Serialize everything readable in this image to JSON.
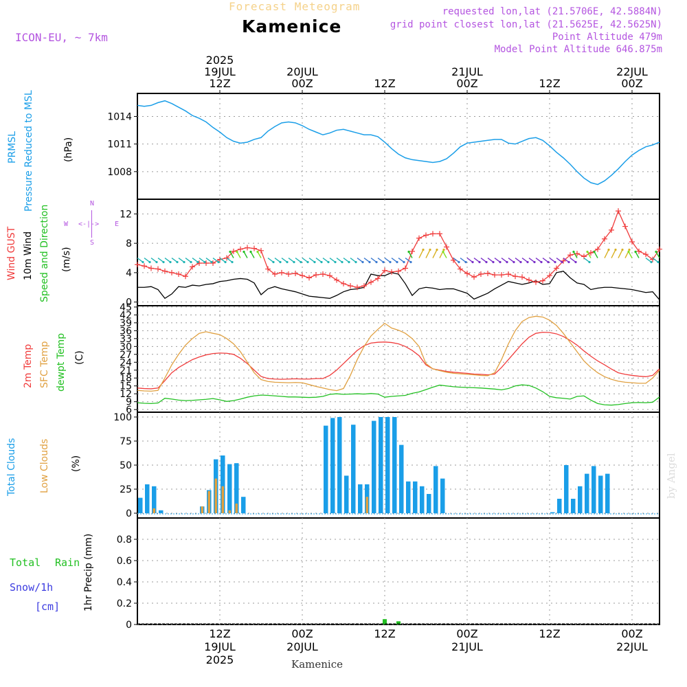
{
  "header": {
    "chart_title": "Forecast Meteogram",
    "location": "Kamenice",
    "model": "ICON-EU, ~ 7km",
    "requested": "requested lon,lat (21.5706E, 42.5884N)",
    "gridpoint": "grid point closest lon,lat (21.5625E, 42.5625N)",
    "point_alt": "Point Altitude 479m",
    "model_alt": "Model Point Altitude 646.875m",
    "bottom_location": "Kamenice",
    "watermark": "by Angel"
  },
  "colors": {
    "pressure": "#1a9ee8",
    "gust": "#f03c3c",
    "wind": "#000000",
    "wind_dir": "#22c022",
    "temp": "#f03c3c",
    "sfc_temp": "#e0a040",
    "dewpt": "#22c022",
    "total_clouds": "#1a9ee8",
    "low_clouds": "#e0a040",
    "rain": "#22c022",
    "snow": "#3c3ce0",
    "compass": "#b455e0"
  },
  "panel_labels": {
    "pressure": {
      "l1": "PRMSL",
      "l2": "Pressure Reduced to MSL",
      "unit": "(hPa)"
    },
    "wind": {
      "l1": "Wind GUST",
      "l2": "10m Wind",
      "l3": "Speed and Direction",
      "unit": "(m/s)"
    },
    "temp": {
      "l1": "2m Temp",
      "l2": "SFC Temp",
      "l3": "dewpt Temp",
      "unit": "(C)"
    },
    "clouds": {
      "l1": "Total Clouds",
      "l2": "Low Clouds",
      "unit": "(%)"
    },
    "precip": {
      "l1": "Total",
      "l1b": "Rain",
      "l2": "Snow/1h",
      "l3": "[cm]",
      "unit": "1hr Precip (mm)"
    }
  },
  "compass": {
    "n": "N",
    "s": "S",
    "w": "W",
    "e": "E",
    "arrow": "<-|->"
  },
  "time_axis": {
    "top": [
      {
        "hour": 12,
        "lines": [
          "2025",
          "19JUL",
          "12Z"
        ]
      },
      {
        "hour": 24,
        "lines": [
          "20JUL",
          "00Z"
        ]
      },
      {
        "hour": 36,
        "lines": [
          "12Z"
        ]
      },
      {
        "hour": 48,
        "lines": [
          "21JUL",
          "00Z"
        ]
      },
      {
        "hour": 60,
        "lines": [
          "12Z"
        ]
      },
      {
        "hour": 72,
        "lines": [
          "22JUL",
          "00Z"
        ]
      }
    ],
    "bottom": [
      {
        "hour": 12,
        "lines": [
          "12Z",
          "19JUL",
          "2025"
        ]
      },
      {
        "hour": 24,
        "lines": [
          "00Z",
          "20JUL"
        ]
      },
      {
        "hour": 36,
        "lines": [
          "12Z"
        ]
      },
      {
        "hour": 48,
        "lines": [
          "00Z",
          "21JUL"
        ]
      },
      {
        "hour": 60,
        "lines": [
          "12Z"
        ]
      },
      {
        "hour": 72,
        "lines": [
          "00Z",
          "22JUL"
        ]
      }
    ]
  },
  "chart_data": [
    {
      "type": "line",
      "title": "PRMSL Pressure Reduced to MSL",
      "ylabel": "(hPa)",
      "ylim": [
        1005,
        1016.5
      ],
      "yticks": [
        1008,
        1011,
        1014
      ],
      "grid": true,
      "x_hours": [
        0,
        1,
        2,
        3,
        4,
        5,
        6,
        7,
        8,
        9,
        10,
        11,
        12,
        13,
        14,
        15,
        16,
        17,
        18,
        19,
        20,
        21,
        22,
        23,
        24,
        25,
        26,
        27,
        28,
        29,
        30,
        31,
        32,
        33,
        34,
        35,
        36,
        37,
        38,
        39,
        40,
        41,
        42,
        43,
        44,
        45,
        46,
        47,
        48,
        49,
        50,
        51,
        52,
        53,
        54,
        55,
        56,
        57,
        58,
        59,
        60,
        61,
        62,
        63,
        64,
        65,
        66,
        67,
        68,
        69,
        70,
        71,
        72,
        73,
        74,
        75,
        76
      ],
      "series": [
        {
          "name": "PRMSL",
          "values": [
            1015.2,
            1015.1,
            1015.2,
            1015.5,
            1015.7,
            1015.4,
            1015.0,
            1014.6,
            1014.1,
            1013.8,
            1013.4,
            1012.8,
            1012.3,
            1011.7,
            1011.3,
            1011.1,
            1011.2,
            1011.5,
            1011.7,
            1012.4,
            1012.9,
            1013.3,
            1013.4,
            1013.3,
            1013.0,
            1012.6,
            1012.3,
            1012.0,
            1012.2,
            1012.5,
            1012.6,
            1012.4,
            1012.2,
            1012.0,
            1012.0,
            1011.8,
            1011.2,
            1010.5,
            1009.9,
            1009.5,
            1009.3,
            1009.2,
            1009.1,
            1009.0,
            1009.1,
            1009.4,
            1010.0,
            1010.7,
            1011.1,
            1011.2,
            1011.3,
            1011.4,
            1011.5,
            1011.5,
            1011.1,
            1011.0,
            1011.3,
            1011.6,
            1011.7,
            1011.4,
            1010.8,
            1010.1,
            1009.5,
            1008.8,
            1008.0,
            1007.3,
            1006.8,
            1006.6,
            1007.0,
            1007.6,
            1008.3,
            1009.1,
            1009.8,
            1010.3,
            1010.7,
            1010.9,
            1011.2
          ]
        }
      ]
    },
    {
      "type": "line",
      "title": "Wind GUST / 10m Wind Speed and Direction",
      "ylabel": "(m/s)",
      "ylim": [
        -0.5,
        14
      ],
      "yticks": [
        0,
        4,
        8,
        12
      ],
      "grid": true,
      "x_hours": [
        0,
        1,
        2,
        3,
        4,
        5,
        6,
        7,
        8,
        9,
        10,
        11,
        12,
        13,
        14,
        15,
        16,
        17,
        18,
        19,
        20,
        21,
        22,
        23,
        24,
        25,
        26,
        27,
        28,
        29,
        30,
        31,
        32,
        33,
        34,
        35,
        36,
        37,
        38,
        39,
        40,
        41,
        42,
        43,
        44,
        45,
        46,
        47,
        48,
        49,
        50,
        51,
        52,
        53,
        54,
        55,
        56,
        57,
        58,
        59,
        60,
        61,
        62,
        63,
        64,
        65,
        66,
        67,
        68,
        69,
        70,
        71,
        72,
        73,
        74,
        75,
        76
      ],
      "series": [
        {
          "name": "Wind GUST",
          "values": [
            5.1,
            4.9,
            4.6,
            4.5,
            4.2,
            4.0,
            3.8,
            3.5,
            4.8,
            5.3,
            5.3,
            5.3,
            5.8,
            6.0,
            6.9,
            7.2,
            7.4,
            7.3,
            7.0,
            4.5,
            3.8,
            4.0,
            3.8,
            3.9,
            3.6,
            3.3,
            3.7,
            3.8,
            3.6,
            3.0,
            2.5,
            2.2,
            2.0,
            2.2,
            2.7,
            3.2,
            4.3,
            4.1,
            4.2,
            4.6,
            6.9,
            8.7,
            9.1,
            9.3,
            9.3,
            7.5,
            5.7,
            4.5,
            3.9,
            3.4,
            3.8,
            3.9,
            3.7,
            3.7,
            3.8,
            3.5,
            3.4,
            3.0,
            2.7,
            2.9,
            3.6,
            4.6,
            5.6,
            6.4,
            6.6,
            6.2,
            6.7,
            7.2,
            8.6,
            9.8,
            12.4,
            10.3,
            8.2,
            6.9,
            6.5,
            5.8,
            7.2
          ]
        },
        {
          "name": "10m Wind",
          "values": [
            2.0,
            2.0,
            2.1,
            1.7,
            0.5,
            1.1,
            2.1,
            2.0,
            2.3,
            2.2,
            2.4,
            2.5,
            2.8,
            2.9,
            3.1,
            3.2,
            3.1,
            2.6,
            1.0,
            1.8,
            2.1,
            1.8,
            1.6,
            1.4,
            1.1,
            0.8,
            0.7,
            0.6,
            0.5,
            0.9,
            1.4,
            1.7,
            1.8,
            2.0,
            3.8,
            3.6,
            3.6,
            4.0,
            3.8,
            2.5,
            0.9,
            1.8,
            2.0,
            1.9,
            1.7,
            1.8,
            1.8,
            1.5,
            1.2,
            0.4,
            0.8,
            1.2,
            1.8,
            2.3,
            2.8,
            2.6,
            2.4,
            2.6,
            2.9,
            2.4,
            2.5,
            4.0,
            4.2,
            3.3,
            2.6,
            2.4,
            1.7,
            1.9,
            2.0,
            2.0,
            1.9,
            1.8,
            1.7,
            1.5,
            1.3,
            1.4,
            0.3
          ]
        }
      ],
      "wind_direction_arrows": "shown every hour; mostly south-easterly to easterly flow (arrows pointing to SE/E), with gusty north-easterly arrows near 19JUL 12Z, 20JUL 12Z and 21JUL 12Z"
    },
    {
      "type": "line",
      "title": "2m Temp / SFC Temp / dewpt Temp",
      "ylabel": "(C)",
      "ylim": [
        5,
        45.5
      ],
      "yticks": [
        6,
        9,
        12,
        15,
        18,
        21,
        24,
        27,
        30,
        33,
        36,
        39,
        42,
        45
      ],
      "grid": true,
      "x_hours": [
        0,
        1,
        2,
        3,
        4,
        5,
        6,
        7,
        8,
        9,
        10,
        11,
        12,
        13,
        14,
        15,
        16,
        17,
        18,
        19,
        20,
        21,
        22,
        23,
        24,
        25,
        26,
        27,
        28,
        29,
        30,
        31,
        32,
        33,
        34,
        35,
        36,
        37,
        38,
        39,
        40,
        41,
        42,
        43,
        44,
        45,
        46,
        47,
        48,
        49,
        50,
        51,
        52,
        53,
        54,
        55,
        56,
        57,
        58,
        59,
        60,
        61,
        62,
        63,
        64,
        65,
        66,
        67,
        68,
        69,
        70,
        71,
        72,
        73,
        74,
        75,
        76
      ],
      "series": [
        {
          "name": "2m Temp",
          "values": [
            14.2,
            14.0,
            13.9,
            14.2,
            17.0,
            20.0,
            22.0,
            23.5,
            25.0,
            26.0,
            26.8,
            27.3,
            27.5,
            27.4,
            27.0,
            25.5,
            23.5,
            21.0,
            18.6,
            17.8,
            17.6,
            17.5,
            17.6,
            17.7,
            17.6,
            17.6,
            17.8,
            17.8,
            19.0,
            21.0,
            23.5,
            26.0,
            28.5,
            30.3,
            31.3,
            31.6,
            31.7,
            31.5,
            31.0,
            30.0,
            28.5,
            26.5,
            23.0,
            21.5,
            21.0,
            20.5,
            20.2,
            20.0,
            19.8,
            19.5,
            19.4,
            19.2,
            19.5,
            22.0,
            25.0,
            28.0,
            31.0,
            33.5,
            35.0,
            35.4,
            35.3,
            34.8,
            33.8,
            32.3,
            30.5,
            28.3,
            26.3,
            24.5,
            23.0,
            21.4,
            20.0,
            19.4,
            19.0,
            18.7,
            18.5,
            19.0,
            21.5
          ]
        },
        {
          "name": "SFC Temp",
          "values": [
            13.3,
            13.1,
            13.0,
            13.3,
            18.0,
            23.0,
            27.0,
            30.5,
            33.0,
            35.0,
            35.6,
            35.0,
            34.5,
            33.0,
            31.0,
            28.0,
            24.0,
            20.0,
            17.4,
            16.7,
            16.4,
            16.3,
            16.2,
            16.3,
            16.2,
            15.5,
            14.8,
            14.2,
            13.6,
            13.2,
            14.0,
            19.0,
            25.0,
            30.0,
            34.0,
            36.5,
            38.8,
            37.0,
            36.2,
            35.0,
            33.0,
            30.0,
            23.5,
            21.5,
            20.8,
            20.2,
            19.8,
            19.6,
            19.4,
            19.2,
            19.0,
            18.9,
            20.0,
            25.0,
            31.0,
            36.0,
            39.5,
            41.0,
            41.5,
            41.2,
            40.0,
            38.0,
            35.0,
            31.5,
            28.0,
            24.5,
            22.0,
            20.0,
            18.5,
            17.5,
            16.8,
            16.4,
            16.2,
            16.0,
            16.0,
            18.0,
            21.0
          ]
        },
        {
          "name": "dewpt Temp",
          "values": [
            8.6,
            8.4,
            8.3,
            8.5,
            10.3,
            10.0,
            9.6,
            9.4,
            9.5,
            9.7,
            9.9,
            10.2,
            9.7,
            9.1,
            9.4,
            10.0,
            10.7,
            11.2,
            11.5,
            11.4,
            11.2,
            11.0,
            10.8,
            10.8,
            10.7,
            10.6,
            10.7,
            11.0,
            11.8,
            12.0,
            11.8,
            11.9,
            12.0,
            11.9,
            12.1,
            11.9,
            10.7,
            11.0,
            11.2,
            11.4,
            12.2,
            12.7,
            13.6,
            14.5,
            15.3,
            15.0,
            14.7,
            14.5,
            14.4,
            14.3,
            14.2,
            14.0,
            13.8,
            13.5,
            14.0,
            15.0,
            15.4,
            15.2,
            14.2,
            12.8,
            11.0,
            10.5,
            10.3,
            10.0,
            11.0,
            11.2,
            9.6,
            8.3,
            7.8,
            7.7,
            7.9,
            8.3,
            8.6,
            8.7,
            8.6,
            8.8,
            10.8
          ]
        }
      ]
    },
    {
      "type": "bar",
      "title": "Total Clouds / Low Clouds",
      "ylabel": "(%)",
      "ylim": [
        -5,
        105
      ],
      "yticks": [
        0,
        25,
        50,
        75,
        100
      ],
      "grid": true,
      "x_hours": [
        0,
        1,
        2,
        3,
        4,
        5,
        6,
        7,
        8,
        9,
        10,
        11,
        12,
        13,
        14,
        15,
        16,
        17,
        18,
        19,
        20,
        21,
        22,
        23,
        24,
        25,
        26,
        27,
        28,
        29,
        30,
        31,
        32,
        33,
        34,
        35,
        36,
        37,
        38,
        39,
        40,
        41,
        42,
        43,
        44,
        45,
        46,
        47,
        48,
        49,
        50,
        51,
        52,
        53,
        54,
        55,
        56,
        57,
        58,
        59,
        60,
        61,
        62,
        63,
        64,
        65,
        66,
        67,
        68,
        69,
        70,
        71,
        72,
        73,
        74,
        75,
        76
      ],
      "series": [
        {
          "name": "Total Clouds",
          "values": [
            16,
            30,
            28,
            3,
            0,
            0,
            0,
            0,
            0,
            7,
            24,
            56,
            60,
            51,
            52,
            17,
            0,
            0,
            0,
            0,
            0,
            0,
            0,
            0,
            0,
            0,
            0,
            91,
            99,
            100,
            39,
            92,
            30,
            30,
            96,
            100,
            100,
            100,
            71,
            33,
            33,
            28,
            20,
            49,
            36,
            0,
            0,
            0,
            0,
            0,
            0,
            0,
            0,
            0,
            0,
            0,
            0,
            0,
            0,
            0,
            1,
            15,
            50,
            15,
            28,
            41,
            49,
            39,
            41,
            0,
            0,
            0,
            0,
            0,
            0,
            0,
            0
          ]
        },
        {
          "name": "Low Clouds",
          "values": [
            0,
            0,
            5,
            0,
            0,
            0,
            0,
            0,
            0,
            7,
            23,
            36,
            28,
            3,
            10,
            0,
            0,
            0,
            0,
            0,
            0,
            0,
            0,
            0,
            0,
            0,
            0,
            0,
            0,
            0,
            0,
            0,
            0,
            17,
            0,
            0,
            0,
            0,
            0,
            0,
            0,
            0,
            0,
            0,
            0,
            0,
            0,
            0,
            0,
            0,
            0,
            0,
            0,
            0,
            0,
            0,
            0,
            0,
            0,
            0,
            0,
            0,
            0,
            0,
            0,
            0,
            0,
            0,
            0,
            0,
            0,
            0,
            0,
            0,
            0,
            0,
            0
          ]
        }
      ]
    },
    {
      "type": "bar",
      "title": "Total Rain / Snow 1hr Precip",
      "ylabel": "1hr Precip (mm)",
      "ylim": [
        0,
        1
      ],
      "yticks": [
        0,
        0.2,
        0.4,
        0.6,
        0.8
      ],
      "grid": true,
      "x_hours": [
        36,
        38
      ],
      "series": [
        {
          "name": "Total Rain",
          "values": [
            0.05,
            0.03
          ]
        },
        {
          "name": "Snow/1h",
          "values": [
            0,
            0
          ]
        }
      ]
    }
  ]
}
